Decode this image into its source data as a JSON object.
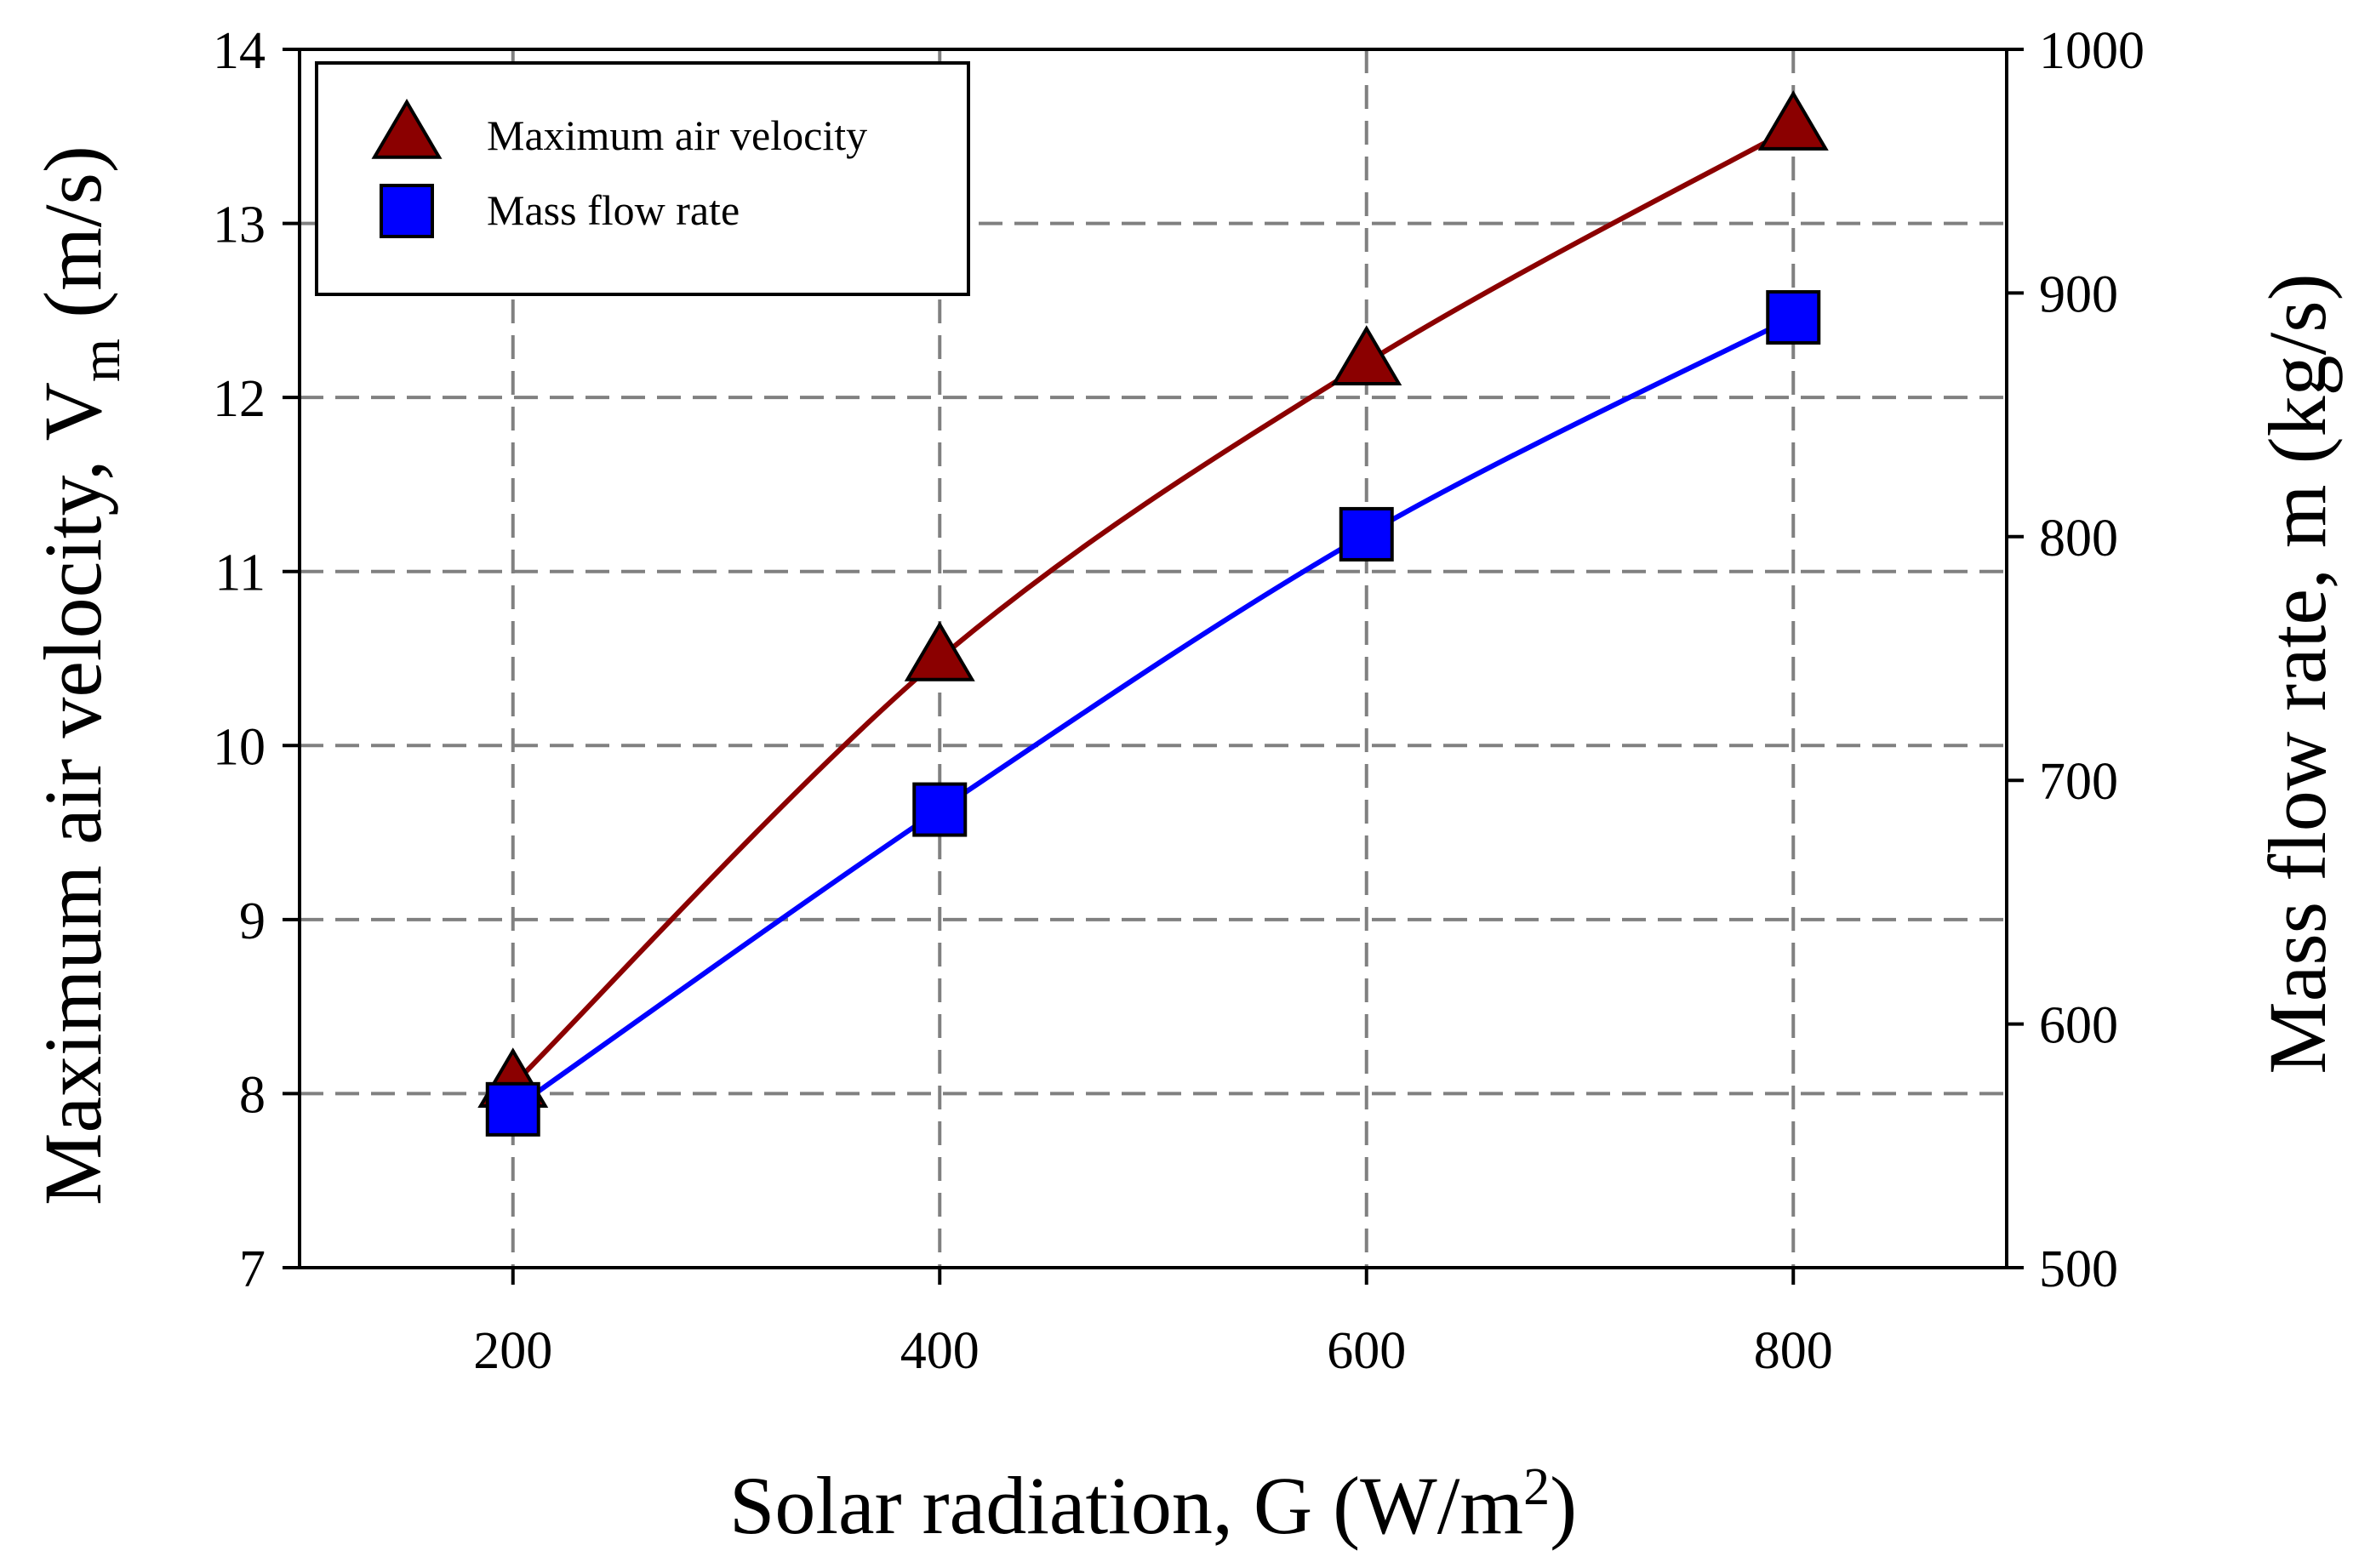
{
  "chart_data": {
    "type": "line",
    "x": [
      200,
      400,
      600,
      800
    ],
    "xlabel": "Solar radiation, G (W/m",
    "xlabel_sup": "2",
    "xlabel_end": ")",
    "xlim": [
      100,
      900
    ],
    "xticks": [
      "200",
      "400",
      "600",
      "800"
    ],
    "ylabel_left": "Maximum air velocity, V",
    "ylabel_left_sub": "m",
    "ylabel_left_end": " (m/s)",
    "ylim_left": [
      7,
      14
    ],
    "yticks_left": [
      "7",
      "8",
      "9",
      "10",
      "11",
      "12",
      "13",
      "14"
    ],
    "ylabel_right": "Mass flow rate, m (kg/s)",
    "ylim_right": [
      500,
      1000
    ],
    "yticks_right": [
      "500",
      "600",
      "700",
      "800",
      "900",
      "1000"
    ],
    "grid": true,
    "legend_position": "top-left",
    "series": [
      {
        "name": "Maximum air velocity",
        "axis": "left",
        "marker": "triangle",
        "color": "#8B0000",
        "values": [
          8.05,
          10.5,
          12.2,
          13.55
        ]
      },
      {
        "name": "Mass flow rate",
        "axis": "right",
        "marker": "square",
        "color": "#0000FF",
        "values": [
          565,
          688,
          801,
          890
        ]
      }
    ]
  }
}
